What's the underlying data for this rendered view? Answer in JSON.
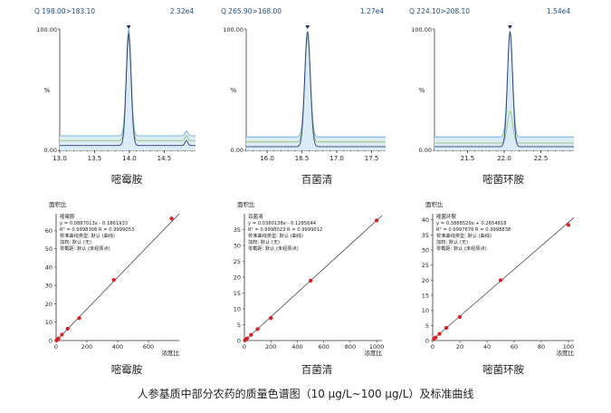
{
  "caption": "人参基质中部分农药的质量色谱图（10 μg/L~100 μg/L）及标准曲线",
  "compounds": [
    {
      "name": "嘧霉胺",
      "chromatogram": {
        "transition": "Q 198.00>183.10",
        "intensity": "2.32e4",
        "y_axis_label": "%",
        "y_ticks": [
          "100.00",
          "0.00"
        ],
        "x_ticks": [
          "13.0",
          "13.5",
          "14.0",
          "14.5"
        ],
        "xlim": [
          13.0,
          14.95
        ],
        "peak_rt": 13.99,
        "peak_sigma": 0.035,
        "secondary_peaks": [
          {
            "rt": 14.82,
            "height": 0.04
          }
        ],
        "traces": [
          {
            "baseline": 0.12,
            "height": 1.0,
            "color": "#6ab0dc"
          },
          {
            "baseline": 0.08,
            "height": 0.92,
            "color": "#95c47a"
          },
          {
            "baseline": 0.04,
            "height": 0.96,
            "color": "#2c3e78"
          }
        ]
      },
      "calibration": {
        "y_axis_title": "面积比",
        "x_axis_title": "浓度比",
        "legend_title": "嘧霉胺",
        "lines": [
          "y = 0.0887013x - 0.1861933",
          "R² = 0.9998306    R = 0.9999053",
          "校准曲线类型: 默认 (曲线)",
          "加权: 默认 (无)",
          "零截距: 默认 (未经原点)"
        ],
        "x_ticks": [
          0,
          200,
          400,
          600
        ],
        "y_ticks": [
          0,
          10,
          20,
          30,
          40,
          50,
          60
        ],
        "xlim": [
          0,
          800
        ],
        "ylim": [
          0,
          69
        ],
        "slope": 0.0887013,
        "intercept": -0.1861933,
        "points": [
          [
            3,
            0.1
          ],
          [
            8,
            0.5
          ],
          [
            15,
            1.1
          ],
          [
            38,
            3.2
          ],
          [
            75,
            6.4
          ],
          [
            150,
            12.2
          ],
          [
            375,
            33.0
          ],
          [
            750,
            66.4
          ]
        ]
      }
    },
    {
      "name": "百菌清",
      "chromatogram": {
        "transition": "Q 265.90>168.00",
        "intensity": "1.27e4",
        "y_axis_label": "%",
        "y_ticks": [
          "100.00",
          "0.00"
        ],
        "x_ticks": [
          "16.0",
          "16.5",
          "17.0",
          "17.5"
        ],
        "xlim": [
          15.7,
          17.7
        ],
        "peak_rt": 16.58,
        "peak_sigma": 0.04,
        "secondary_peaks": [],
        "traces": [
          {
            "baseline": 0.11,
            "height": 0.97,
            "color": "#6ab0dc"
          },
          {
            "baseline": 0.07,
            "height": 0.93,
            "color": "#95c47a"
          },
          {
            "baseline": 0.03,
            "height": 0.98,
            "color": "#2c3e78"
          }
        ]
      },
      "calibration": {
        "y_axis_title": "面积比",
        "x_axis_title": "浓度比",
        "legend_title": "百菌清",
        "lines": [
          "y = 0.0380138x - 0.1285644",
          "R² = 0.9998023    R = 0.9999012",
          "校准曲线类型: 默认 (曲线)",
          "加权: 默认 (无)",
          "零截距: 默认 (未经原点)"
        ],
        "x_ticks": [
          0,
          200,
          400,
          600,
          800,
          1000
        ],
        "y_ticks": [
          0,
          5,
          10,
          15,
          20,
          25,
          30,
          35
        ],
        "xlim": [
          0,
          1040
        ],
        "ylim": [
          0,
          40
        ],
        "slope": 0.0380138,
        "intercept": -0.1285644,
        "points": [
          [
            5,
            0.1
          ],
          [
            10,
            0.3
          ],
          [
            20,
            0.7
          ],
          [
            50,
            1.8
          ],
          [
            100,
            3.6
          ],
          [
            200,
            7.1
          ],
          [
            500,
            18.9
          ],
          [
            1000,
            37.9
          ]
        ]
      }
    },
    {
      "name": "嘧菌环胺",
      "chromatogram": {
        "transition": "Q 224.10>208.10",
        "intensity": "1.54e4",
        "y_axis_label": "%",
        "y_ticks": [
          "100.00",
          "0.00"
        ],
        "x_ticks": [
          "21.5",
          "22.0",
          "22.5"
        ],
        "xlim": [
          21.05,
          22.95
        ],
        "peak_rt": 22.08,
        "peak_sigma": 0.035,
        "secondary_peaks": [],
        "traces": [
          {
            "baseline": 0.11,
            "height": 0.98,
            "color": "#6ab0dc"
          },
          {
            "baseline": 0.06,
            "height": 0.28,
            "color": "#95c47a"
          },
          {
            "baseline": 0.03,
            "height": 0.98,
            "color": "#2c3e78"
          }
        ]
      },
      "calibration": {
        "y_axis_title": "面积比",
        "x_axis_title": "浓度比",
        "legend_title": "嘧菌环胺",
        "lines": [
          "y = 0.3888529x + 0.2654818",
          "R² = 0.9997676    R = 0.9998838",
          "校准曲线类型: 默认 (曲线)",
          "加权: 默认 (无)",
          "零截距: 默认 (未经原点)"
        ],
        "x_ticks": [
          0,
          20,
          40,
          60,
          80,
          100
        ],
        "y_ticks": [
          0,
          5,
          10,
          15,
          20,
          25,
          30,
          35,
          40
        ],
        "xlim": [
          0,
          104
        ],
        "ylim": [
          0,
          42
        ],
        "slope": 0.3888529,
        "intercept": 0.2654818,
        "points": [
          [
            1,
            0.6
          ],
          [
            2,
            1.0
          ],
          [
            5,
            2.2
          ],
          [
            10,
            4.2
          ],
          [
            20,
            7.8
          ],
          [
            50,
            20.0
          ],
          [
            100,
            38.3
          ]
        ]
      }
    }
  ],
  "chart_data": [
    {
      "type": "line",
      "title": "Q 198.00>183.10",
      "ylabel": "%",
      "intensity": "2.32e4",
      "xlim": [
        13.0,
        14.95
      ],
      "ylim": [
        0,
        100
      ],
      "peak_rt": 13.99
    },
    {
      "type": "line",
      "title": "Q 265.90>168.00",
      "ylabel": "%",
      "intensity": "1.27e4",
      "xlim": [
        15.7,
        17.7
      ],
      "ylim": [
        0,
        100
      ],
      "peak_rt": 16.58
    },
    {
      "type": "line",
      "title": "Q 224.10>208.10",
      "ylabel": "%",
      "intensity": "1.54e4",
      "xlim": [
        21.05,
        22.95
      ],
      "ylim": [
        0,
        100
      ],
      "peak_rt": 22.08
    },
    {
      "type": "scatter",
      "title": "嘧霉胺",
      "xlabel": "浓度比",
      "ylabel": "面积比",
      "x": [
        3,
        8,
        15,
        38,
        75,
        150,
        375,
        750
      ],
      "y": [
        0.1,
        0.5,
        1.1,
        3.2,
        6.4,
        12.2,
        33.0,
        66.4
      ],
      "fit": {
        "slope": 0.0887013,
        "intercept": -0.1861933
      }
    },
    {
      "type": "scatter",
      "title": "百菌清",
      "xlabel": "浓度比",
      "ylabel": "面积比",
      "x": [
        5,
        10,
        20,
        50,
        100,
        200,
        500,
        1000
      ],
      "y": [
        0.1,
        0.3,
        0.7,
        1.8,
        3.6,
        7.1,
        18.9,
        37.9
      ],
      "fit": {
        "slope": 0.0380138,
        "intercept": -0.1285644
      }
    },
    {
      "type": "scatter",
      "title": "嘧菌环胺",
      "xlabel": "浓度比",
      "ylabel": "面积比",
      "x": [
        1,
        2,
        5,
        10,
        20,
        50,
        100
      ],
      "y": [
        0.6,
        1.0,
        2.2,
        4.2,
        7.8,
        20.0,
        38.3
      ],
      "fit": {
        "slope": 0.3888529,
        "intercept": 0.2654818
      }
    }
  ],
  "colors": {
    "axis": "#333333",
    "fill": "#dcecf7",
    "point": "#e41a1c",
    "fit_line": "#333333",
    "peak_marker": "#1f2f6b"
  }
}
